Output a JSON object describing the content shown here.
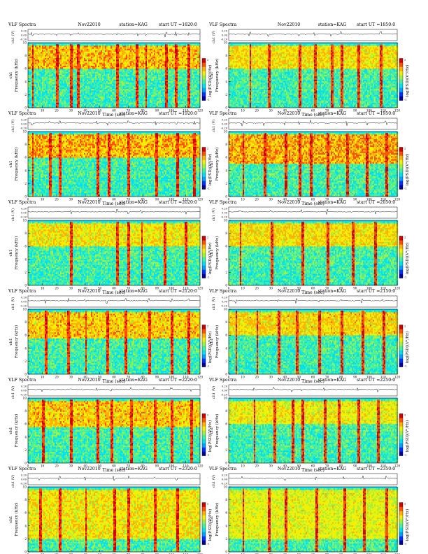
{
  "page": {
    "header_title": "VLF Spectra",
    "date": "Nov22010",
    "station": "station=KAG",
    "start_prefix": "start  UT =",
    "xlabel": "Time  (sec)",
    "ylabel_freq": "Frequency  (kHz)",
    "ylabel_ch": "ch1",
    "ylabel_chv": "ch1 (V)",
    "colorbar_label": "log(PSD)(V²/Hz)"
  },
  "chart_data": [
    {
      "type": "heatmap",
      "start_ut": "1820:0",
      "xlim": [
        0,
        120
      ],
      "ylim_khz": [
        0,
        10
      ],
      "xticks": [
        0,
        10,
        20,
        30,
        40,
        50,
        60,
        70,
        80,
        90,
        100,
        110,
        120
      ],
      "yticks": [
        0,
        2,
        4,
        6,
        8,
        10
      ],
      "amp_ticks": [
        "0.20",
        "0.00",
        "-0.20"
      ],
      "colorbar_ticks": [
        "2",
        "-2"
      ],
      "band_khz": [
        6,
        9.5
      ],
      "cutoff_khz": 9.7,
      "intensity": 0.75,
      "bursts": [
        3,
        20,
        30,
        35,
        62,
        76,
        82,
        96,
        103,
        112
      ]
    },
    {
      "type": "heatmap",
      "start_ut": "1850:0",
      "xlim": [
        0,
        120
      ],
      "ylim_khz": [
        0,
        10
      ],
      "xticks": [
        0,
        10,
        20,
        30,
        40,
        50,
        60,
        70,
        80,
        90,
        100,
        110,
        120
      ],
      "yticks": [
        0,
        2,
        4,
        6,
        8,
        10
      ],
      "amp_ticks": [
        "0.20",
        "0.00",
        "-0.20"
      ],
      "colorbar_ticks": [
        "2",
        "-2"
      ],
      "band_khz": [
        6,
        9.5
      ],
      "cutoff_khz": 9.7,
      "intensity": 0.6,
      "bursts": [
        15,
        28,
        50,
        61,
        73,
        80,
        92,
        108
      ]
    },
    {
      "type": "heatmap",
      "start_ut": "1920:0",
      "xlim": [
        0,
        120
      ],
      "ylim_khz": [
        0,
        10
      ],
      "xticks": [
        0,
        10,
        20,
        30,
        40,
        50,
        60,
        70,
        80,
        90,
        100,
        110,
        120
      ],
      "yticks": [
        0,
        2,
        4,
        6,
        8,
        10
      ],
      "amp_ticks": [
        "0.20",
        "0.00",
        "-0.20"
      ],
      "colorbar_ticks": [
        "2",
        "-2"
      ],
      "band_khz": [
        6,
        9.5
      ],
      "cutoff_khz": 9.7,
      "intensity": 0.8,
      "bursts": [
        3,
        15,
        22,
        48,
        56,
        70,
        89,
        104,
        116
      ]
    },
    {
      "type": "heatmap",
      "start_ut": "1950:0",
      "xlim": [
        0,
        120
      ],
      "ylim_khz": [
        0,
        10
      ],
      "xticks": [
        0,
        10,
        20,
        30,
        40,
        50,
        60,
        70,
        80,
        90,
        100,
        110,
        120
      ],
      "yticks": [
        0,
        2,
        4,
        6,
        8,
        10
      ],
      "amp_ticks": [
        "0.20",
        "0.00",
        "-0.20"
      ],
      "colorbar_ticks": [
        "2",
        "-2"
      ],
      "band_khz": [
        5,
        9.5
      ],
      "cutoff_khz": 9.7,
      "intensity": 0.85,
      "bursts": [
        10,
        25,
        40,
        50,
        58,
        70,
        84,
        98,
        112
      ]
    },
    {
      "type": "heatmap",
      "start_ut": "2020:0",
      "xlim": [
        0,
        120
      ],
      "ylim_khz": [
        0,
        10
      ],
      "xticks": [
        0,
        10,
        20,
        30,
        40,
        50,
        60,
        70,
        80,
        90,
        100,
        110,
        120
      ],
      "yticks": [
        0,
        2,
        4,
        6,
        8,
        10
      ],
      "amp_ticks": [
        "0.20",
        "0.00",
        "-0.20"
      ],
      "colorbar_ticks": [
        "2",
        "-2"
      ],
      "band_khz": [
        6,
        9.5
      ],
      "cutoff_khz": 9.7,
      "intensity": 0.55,
      "bursts": [
        30,
        62,
        70,
        79,
        95,
        110
      ]
    },
    {
      "type": "heatmap",
      "start_ut": "2050:0",
      "xlim": [
        0,
        120
      ],
      "ylim_khz": [
        0,
        10
      ],
      "xticks": [
        0,
        10,
        20,
        30,
        40,
        50,
        60,
        70,
        80,
        90,
        100,
        110,
        120
      ],
      "yticks": [
        0,
        2,
        4,
        6,
        8,
        10
      ],
      "amp_ticks": [
        "0.20",
        "0.00",
        "-0.20"
      ],
      "colorbar_ticks": [
        "2",
        "-2"
      ],
      "band_khz": [
        6,
        9.5
      ],
      "cutoff_khz": 9.7,
      "intensity": 0.6,
      "bursts": [
        8,
        30,
        52,
        70,
        88,
        104
      ]
    },
    {
      "type": "heatmap",
      "start_ut": "2120:0",
      "xlim": [
        0,
        120
      ],
      "ylim_khz": [
        0,
        10
      ],
      "xticks": [
        0,
        10,
        20,
        30,
        40,
        50,
        60,
        70,
        80,
        90,
        100,
        110,
        120
      ],
      "yticks": [
        0,
        2,
        4,
        6,
        8,
        10
      ],
      "amp_ticks": [
        "0.20",
        "0.00",
        "-0.20"
      ],
      "colorbar_ticks": [
        "2",
        "-2"
      ],
      "band_khz": [
        5.5,
        9.5
      ],
      "cutoff_khz": 9.7,
      "intensity": 0.7,
      "bursts": [
        12,
        28,
        40,
        55,
        68,
        84,
        100,
        112
      ]
    },
    {
      "type": "heatmap",
      "start_ut": "2150:0",
      "xlim": [
        0,
        120
      ],
      "ylim_khz": [
        0,
        10
      ],
      "xticks": [
        0,
        10,
        20,
        30,
        40,
        50,
        60,
        70,
        80,
        90,
        100,
        110,
        120
      ],
      "yticks": [
        0,
        2,
        4,
        6,
        8,
        10
      ],
      "amp_ticks": [
        "0.20",
        "0.00",
        "-0.20"
      ],
      "colorbar_ticks": [
        "2",
        "-2"
      ],
      "band_khz": [
        6,
        9.5
      ],
      "cutoff_khz": 9.7,
      "intensity": 0.65,
      "bursts": [
        5,
        20,
        35,
        48,
        64,
        80,
        95,
        110
      ]
    },
    {
      "type": "heatmap",
      "start_ut": "2220:0",
      "xlim": [
        0,
        120
      ],
      "ylim_khz": [
        0,
        10
      ],
      "xticks": [
        0,
        10,
        20,
        30,
        40,
        50,
        60,
        70,
        80,
        90,
        100,
        110,
        120
      ],
      "yticks": [
        0,
        2,
        4,
        6,
        8,
        10
      ],
      "amp_ticks": [
        "0.20",
        "0.00",
        "-0.20"
      ],
      "colorbar_ticks": [
        "2",
        "-2"
      ],
      "band_khz": [
        5.5,
        9.5
      ],
      "cutoff_khz": 9.7,
      "intensity": 0.7,
      "bursts": [
        10,
        30,
        48,
        58,
        72,
        88,
        100,
        114
      ]
    },
    {
      "type": "heatmap",
      "start_ut": "2250:0",
      "xlim": [
        0,
        120
      ],
      "ylim_khz": [
        0,
        10
      ],
      "xticks": [
        0,
        10,
        20,
        30,
        40,
        50,
        60,
        70,
        80,
        90,
        100,
        110,
        120
      ],
      "yticks": [
        0,
        2,
        4,
        6,
        8,
        10
      ],
      "amp_ticks": [
        "0.20",
        "0.00",
        "-0.20"
      ],
      "colorbar_ticks": [
        "2",
        "-2"
      ],
      "band_khz": [
        6,
        9.5
      ],
      "cutoff_khz": 9.7,
      "intensity": 0.5,
      "bursts": [
        18,
        32,
        45,
        52,
        68,
        78,
        92,
        106
      ]
    },
    {
      "type": "heatmap",
      "start_ut": "2320:0",
      "xlim": [
        0,
        120
      ],
      "ylim_khz": [
        0,
        10
      ],
      "xticks": [
        0,
        10,
        20,
        30,
        40,
        50,
        60,
        70,
        80,
        90,
        100,
        110,
        120
      ],
      "yticks": [
        0,
        2,
        4,
        6,
        8,
        10
      ],
      "amp_ticks": [
        "0.20",
        "0.00",
        "-0.20"
      ],
      "colorbar_ticks": [
        "2",
        "-2"
      ],
      "band_khz": [
        2,
        9.5
      ],
      "cutoff_khz": 9.7,
      "intensity": 0.55,
      "bursts": [
        8,
        22,
        40,
        60,
        70,
        88,
        104
      ]
    },
    {
      "type": "heatmap",
      "start_ut": "2350:0",
      "xlim": [
        0,
        120
      ],
      "ylim_khz": [
        0,
        10
      ],
      "xticks": [
        0,
        10,
        20,
        30,
        40,
        50,
        60,
        70,
        80,
        90,
        100,
        110,
        120
      ],
      "yticks": [
        0,
        2,
        4,
        6,
        8,
        10
      ],
      "amp_ticks": [
        "0.20",
        "0.00",
        "-0.20"
      ],
      "colorbar_ticks": [
        "2",
        "-2"
      ],
      "band_khz": [
        2,
        9.5
      ],
      "cutoff_khz": 9.7,
      "intensity": 0.45,
      "bursts": [
        10,
        28,
        40,
        62,
        82,
        96,
        112
      ]
    }
  ]
}
